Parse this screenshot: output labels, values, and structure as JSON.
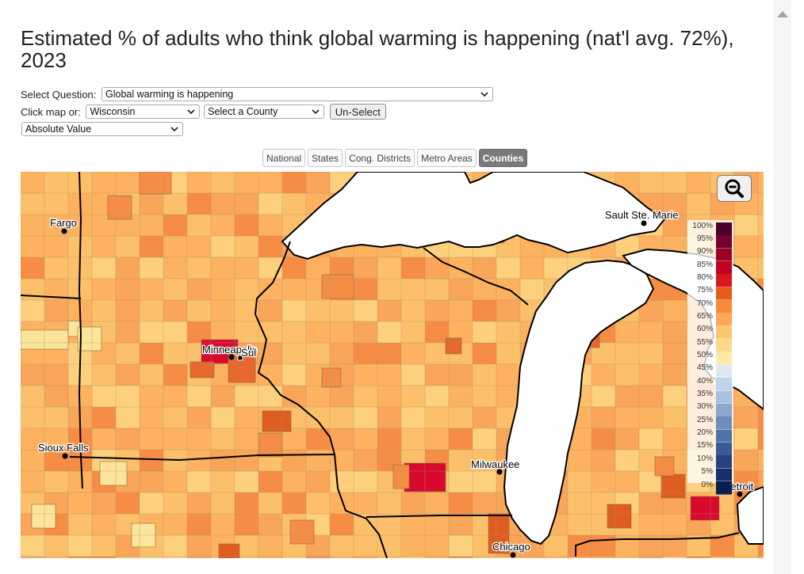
{
  "title": "Estimated % of adults who think global warming is happening (nat'l avg. 72%), 2023",
  "controls": {
    "question_label": "Select Question:",
    "question_value": "Global warming is happening",
    "click_label": "Click map or:",
    "state_value": "Wisconsin",
    "county_value": "Select a County",
    "unselect_label": "Un-Select",
    "measure_value": "Absolute Value"
  },
  "tabs": [
    {
      "label": "National",
      "active": false
    },
    {
      "label": "States",
      "active": false
    },
    {
      "label": "Cong. Districts",
      "active": false
    },
    {
      "label": "Metro Areas",
      "active": false
    },
    {
      "label": "Counties",
      "active": true
    }
  ],
  "map": {
    "cities": [
      "Fargo",
      "Minneapolis",
      "St. Paul",
      "Sioux Falls",
      "Milwaukee",
      "Chicago",
      "Sault Ste. Marie",
      "Detroit"
    ],
    "city_label_text": {
      "fargo": "Fargo",
      "minneapolis": "Minneapolis",
      "stpaul": "S",
      "stpaul_tail": "ul",
      "sioux": "Sioux Falls",
      "milwaukee": "Milwaukee",
      "chicago": "Chicago",
      "sault": "Sault Ste. Marie",
      "detroit": "Detroit"
    },
    "colors": {
      "water": "#ffffff",
      "county_border": "#9e8a6a",
      "state_border": "#000000",
      "c58": "#fde49b",
      "c63": "#fdd07d",
      "c66": "#fdc06a",
      "c68": "#fdb260",
      "c71": "#f9a55a",
      "c74": "#f68d45",
      "c77": "#e8672c",
      "c79": "#e05d20",
      "c82": "#d8092e"
    }
  },
  "legend": {
    "labels": [
      "100%",
      "95%",
      "90%",
      "85%",
      "80%",
      "75%",
      "70%",
      "65%",
      "60%",
      "55%",
      "50%",
      "45%",
      "40%",
      "35%",
      "30%",
      "25%",
      "20%",
      "15%",
      "10%",
      "5%",
      "0%"
    ],
    "colors": [
      "#4b002d",
      "#75002c",
      "#9b0022",
      "#c0001e",
      "#d7191c",
      "#e45c1e",
      "#f58a38",
      "#f9a855",
      "#fdc56c",
      "#fdd98b",
      "#fee9a6",
      "#dfe8f2",
      "#c0d4e9",
      "#a7c1df",
      "#8aa7cd",
      "#6c8dbd",
      "#4f72a9",
      "#3a5a96",
      "#26427f",
      "#15306a",
      "#0b1e50"
    ]
  },
  "zoom_icon": "zoom-out-icon",
  "scroll_icon": "scroll-up-arrow-icon"
}
